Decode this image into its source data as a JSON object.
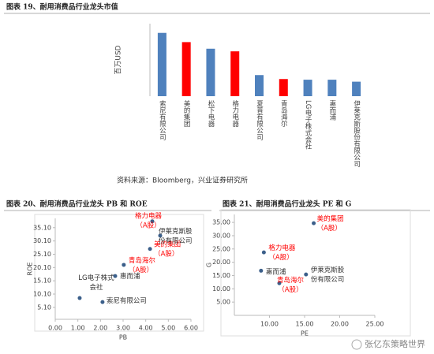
{
  "chart_data": [
    {
      "type": "bar",
      "title": "图表 19、耐用消费品行业龙头市值",
      "ylabel": "百万USD",
      "categories": [
        "索尼有限公司",
        "美的集团",
        "松下电器",
        "格力电器",
        "夏普有限公司",
        "青岛海尔",
        "LG电子株式会社",
        "惠而浦",
        "伊莱克斯股份有限公司"
      ],
      "values": [
        48000,
        41000,
        36000,
        34000,
        16000,
        13000,
        12500,
        12500,
        11000
      ],
      "colors": [
        "#4f81bd",
        "#ff0000",
        "#4f81bd",
        "#ff0000",
        "#4f81bd",
        "#ff0000",
        "#4f81bd",
        "#4f81bd",
        "#4f81bd"
      ],
      "ylim": [
        0,
        55000
      ],
      "note": "资料来源：Bloomberg，兴业证券研究所"
    },
    {
      "type": "scatter",
      "title": "图表 20、耐用消费品行业龙头 PB 和 ROE",
      "xlabel": "PB",
      "ylabel": "ROE",
      "xlim": [
        0,
        6
      ],
      "xticks": [
        {
          "value": 0,
          "label": "0.00"
        },
        {
          "value": 1,
          "label": "1.00"
        },
        {
          "value": 2,
          "label": "2.00"
        },
        {
          "value": 3,
          "label": "3.00"
        },
        {
          "value": 4,
          "label": "4.00"
        },
        {
          "value": 5,
          "label": "5.00"
        },
        {
          "value": 6,
          "label": "6.00"
        }
      ],
      "ylim": [
        0.6,
        38.6
      ],
      "yticks": [
        {
          "value": 5.1,
          "label": "5.10"
        },
        {
          "value": 10.1,
          "label": "10.10"
        },
        {
          "value": 15.1,
          "label": "15.10"
        },
        {
          "value": 20.1,
          "label": "20.10"
        },
        {
          "value": 25.1,
          "label": "25.10"
        },
        {
          "value": 30.1,
          "label": "30.10"
        },
        {
          "value": 35.1,
          "label": "35.10"
        }
      ],
      "color": "#3b5f8a",
      "x": [
        2.09,
        1.08,
        2.65,
        3.03,
        4.19,
        4.64,
        4.29
      ],
      "values": [
        7.1,
        8.6,
        16.9,
        21.1,
        27.1,
        32.1,
        37.5
      ],
      "labels": [
        [
          "索尼有限公司"
        ],
        [
          "LG电子株式",
          "会社"
        ],
        [
          "惠而浦"
        ],
        [
          "青岛海尔",
          "（A股）"
        ],
        [
          "美的集团",
          "（A股）"
        ],
        [
          "伊莱克斯股",
          "份有限公司"
        ],
        [
          "格力电器",
          "（A股）"
        ]
      ],
      "label_colors": [
        "#333333",
        "#333333",
        "#333333",
        "#ff0000",
        "#ff0000",
        "#333333",
        "#ff0000"
      ]
    },
    {
      "type": "scatter",
      "title": "图表 21、耐用消费品行业龙头 PE 和 G",
      "xlabel": "PE",
      "ylabel": "G",
      "xlim": [
        5,
        25
      ],
      "xticks": [
        {
          "value": 10,
          "label": "10.00"
        },
        {
          "value": 15,
          "label": "15.00"
        },
        {
          "value": 20,
          "label": "20.00"
        },
        {
          "value": 25,
          "label": "25.00"
        }
      ],
      "ylim": [
        0,
        38
      ],
      "yticks": [
        {
          "value": 5,
          "label": "5.00"
        },
        {
          "value": 10,
          "label": "10.00"
        },
        {
          "value": 15,
          "label": "15.00"
        },
        {
          "value": 20,
          "label": "20.00"
        },
        {
          "value": 25,
          "label": "25.00"
        },
        {
          "value": 30,
          "label": "30.00"
        },
        {
          "value": 35,
          "label": "35.00"
        }
      ],
      "color": "#3b5f8a",
      "x": [
        16.3,
        9.2,
        8.8,
        11.4,
        15.2
      ],
      "values": [
        34.7,
        23.7,
        16.8,
        12.1,
        15.4
      ],
      "labels": [
        [
          "美的集团",
          "（A股）"
        ],
        [
          "格力电器",
          "（A股）"
        ],
        [
          "惠而浦"
        ],
        [
          "青岛海尔",
          "（A股）"
        ],
        [
          "伊莱克斯股",
          "份有限公司"
        ]
      ],
      "label_colors": [
        "#ff0000",
        "#ff0000",
        "#333333",
        "#ff0000",
        "#333333"
      ]
    }
  ],
  "watermark": "张亿东策略世界"
}
